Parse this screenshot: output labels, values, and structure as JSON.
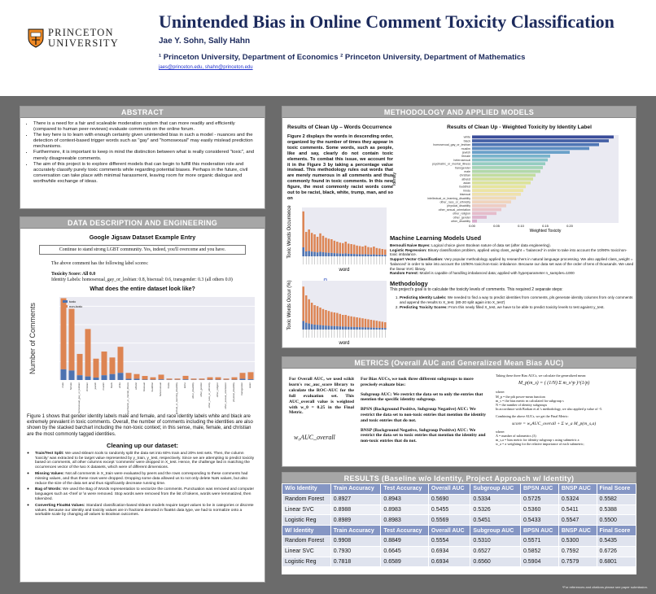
{
  "header": {
    "title": "Unintended Bias in Online Comment Toxicity Classification",
    "authors": "Jae Y. Sohn, Sally Hahn",
    "affiliation": "¹ Princeton University, Department of Economics ² Princeton University, Department of Mathematics",
    "emails": "jaes@princeton.edu, shahn@princeton.edu",
    "logo_line1": "PRINCETON",
    "logo_line2": "UNIVERSITY"
  },
  "abstract": {
    "title": "ABSTRACT",
    "bullets": [
      "There is a need for a fair and scaleable moderation system that can more readily and efficiently (compared to human peer-reviews) evaluate comments on the online forum.",
      "The key here is to learn with enough certainty given unintended bias in such a model - nuances and the detection of context-based trigger words such as \"gay\" and \"homosexual\" may easily mislead prediction mechanisms.",
      "Furthermore, it is important to keep in mind the distinction between what is really considered \"toxic\", and merely disagreeable comments.",
      "The aim of this project is to explore different models that can begin to fulfill this moderation role and accurately classify purely toxic comments while regarding potential biases. Perhaps in the future, civil conversation can take place with minimal harassment, leaving room for more organic dialogue and worthwhile exchange of ideas."
    ]
  },
  "data": {
    "title": "DATA DESCRIPTION AND ENGINEERING",
    "sub1": "Google Jigsaw Dataset Example Entry",
    "example": "Continue to stand strong LGBT community. Yes, indeed, you'll overcome and you have.",
    "scores_intro": "The above comment has the following label scores:",
    "toxicity": "Toxicity Score: All 0.0",
    "identity": "Identity Labels: homosexual_gay_or_lesbian: 0.8, bisexual: 0.6, transgender: 0.3 (all others 0.0)",
    "sub2": "What does the entire dataset look like?",
    "fig1_text": "Figure 1 shows that gender identity labels male and female, and race identity labels white and black are extremely prevalent in toxic comments. Overall, the number of comments including the identities are also shown by the stacked barchart including the non-toxic context; in this sense, male, female, and christian are the most commonly tagged identities.",
    "sub3": "Cleaning up our dataset:",
    "clean": [
      {
        "head": "Train/Test Split:",
        "text": "We used sklearn tools to randomly split the data set into 60% train and 20% test sets. Then, the column 'toxicity' was extracted to be target value represented by y_train, y_test, respectively. Since we are attempting to predict toxicity based on comments, all other columns except 'comments' were dropped in X_test. Hence, the challenge lied in matching the occurrences vector of the two X datasets, which were of different dimensions."
      },
      {
        "head": "Missing Values:",
        "text": "Not all comments in X_train were evaluated by peers and the rows corresponding to these comments had missing values, and thus these rows were dropped. Dropping some data allowed us to not only delete NaN values, but also reduce the size of the data set and thus significantly decrease running time."
      },
      {
        "head": "Bag of Words:",
        "text": "We used the Bag of Words representation to vectorize the comments. Punctuation was removed and computer languages such as <href or \\n were removed. Stop words were removed from the list of tokens, words were lemmatized, then tokenized."
      },
      {
        "head": "Converting Float64 Values:",
        "text": "Standard classification-based sklearn models require target values to be in categories or discrete values. Because our identity and toxicity values are in fractions denoted in float64 data type, we had to normalize onto a workable scale by changing all values to Boolean outcomes."
      }
    ]
  },
  "methods": {
    "title": "METHODOLOGY AND APPLIED MODELS",
    "sub1": "Results of Clean Up – Words Occurrence",
    "fig2_text": "Figure 2 displays the words in descending order, organized by the number of times they appear in toxic comments. Some words, such as people, like and say, clearly do not contain toxic elements. To combat this issue, we account for it in the Figure 3 by taking a percentage value instead. This methodology rules out words that are merely numerous in all comments and thus commonly found in toxic comments. In this new figure, the most commonly racist words come out to be racist, black, white, trump, man, and so on",
    "sub2": "Results of Clean Up - Weighted Toxicity by Identity Label",
    "ml_title": "Machine Learning Models Used",
    "ml": [
      {
        "head": "Bernoulli Naive Bayes:",
        "text": "Logical choice given Boolean nature of data set (after data engineering)."
      },
      {
        "head": "Logistic Regression:",
        "text": "Binary classification problem, applied using class_weight = 'balanced' in order to take into account the 10/90% toxic/non-toxic imbalance."
      },
      {
        "head": "Support Vector Classification:",
        "text": "Very popular methodology applied by researchers in natural language processing. We also applied class_weight = 'balanced' in order to take into account the 10/90% toxic/non-toxic imbalance. Because our data set was of the order of tens of thousands. We used the linear SVC library."
      },
      {
        "head": "Random Forest:",
        "text": "Model is capable of handling imbalanced data; applied with hyperparameter n_samples=1000"
      }
    ],
    "meth_title": "Methodology",
    "meth_intro": "This project's goal is to calculate the toxicity levels of comments. This required 2 separate steps:",
    "steps": [
      {
        "head": "Predicting Identity Labels:",
        "text": "We needed to find a way to predict identities from comments, pls generate identity columns from only comments and append the results to X_test. (80-20 split again into X_test')"
      },
      {
        "head": "Predicting Toxicity Scores:",
        "text": "From this newly filled X_test, we have to be able to predict toxicity levels to test against y_test."
      }
    ]
  },
  "metrics": {
    "title": "METRICS (Overall AUC and Generalized Mean Bias AUC)",
    "col1": "For Overall AUC, we used scikit learn's roc_auc_score library to calculate the ROC-AUC for the full evaluation set. This AUC_overall value is weighted with w_0 = 0.25 in the Final Metric.",
    "formula1": "w₀AUC_overall",
    "col2_intro": "For Bias AUCs, we took three different subgroups to more precisely evaluate bias:",
    "subgroup": "Subgroup AUC: We restrict the data set to only the entries that mention the specific identity subgroup.",
    "bpsn": "BPSN (Background Positive, Subgroup Negative) AUC: We restrict the data set to non-toxic entries that mention the identity and toxic entries that do not.",
    "bnsp": "BNSP (Background Negative, Subgroup Positive) AUC: We restrict the data set to toxic entries that mention the identity and non-toxic entries that do not.",
    "col3_intro": "Taking these three Bias AUCs, we calculate the generalized mean:",
    "formula2": "M_p(m_s) = ( (1/N) Σ m_s^p )^(1/p)",
    "where1": "where:",
    "w1": "M_p = the pth power-mean function",
    "w2": "m_s = the bias metric m calculated for subgroup s",
    "w3": "N = the number of identity subgroups",
    "w4": "In accordance with Borkan et al.'s methodology, we also applied p value of -5.",
    "combine": "Combining the above AUCs, we get the Final Metric:",
    "formula3": "score = w₀AUC_overall + Σ w_a M_p(m_s,a)",
    "where2": "where:",
    "w5": "A = number of submetrics (3)",
    "w6": "m_s,a = bias metric for identity subgroup s using submetric a",
    "w7": "w_a = a weighting for the relative importance of each submetric;"
  },
  "results": {
    "title": "RESULTS (Baseline w/o Identity, Project Approach w/ Identity)",
    "headers1": [
      "W/o Identity",
      "Train Accuracy",
      "Test Accuracy",
      "Overall AUC",
      "Subgroup AUC",
      "BPSN AUC",
      "BNSP AUC",
      "Final Score"
    ],
    "rows1": [
      [
        "Random Forest",
        "0.8927",
        "0.8943",
        "0.5690",
        "0.5334",
        "0.5725",
        "0.5324",
        "0.5582"
      ],
      [
        "Linear SVC",
        "0.8988",
        "0.8983",
        "0.5455",
        "0.5326",
        "0.5360",
        "0.5411",
        "0.5388"
      ],
      [
        "Logistic Reg",
        "0.8989",
        "0.8983",
        "0.5569",
        "0.5451",
        "0.5433",
        "0.5547",
        "0.5500"
      ]
    ],
    "headers2": [
      "W/ Identity",
      "Train Accuracy",
      "Test Accuracy",
      "Overall AUC",
      "Subgroup AUC",
      "BPSN AUC",
      "BNSP AUC",
      "Final Score"
    ],
    "rows2": [
      [
        "Random Forest",
        "0.9908",
        "0.8849",
        "0.5554",
        "0.5310",
        "0.5571",
        "0.5300",
        "0.5435"
      ],
      [
        "Linear SVC",
        "0.7930",
        "0.6645",
        "0.6934",
        "0.6527",
        "0.5852",
        "0.7592",
        "0.6726"
      ],
      [
        "Logistic Reg",
        "0.7818",
        "0.6589",
        "0.6934",
        "0.6560",
        "0.5904",
        "0.7579",
        "0.6801"
      ]
    ]
  },
  "footnote": "*For references and citations please see paper submission.",
  "chart_data": [
    {
      "type": "bar",
      "title": "",
      "ylabel": "Number of Comments",
      "legend": [
        "toxic",
        "non-toxic"
      ],
      "categories": [
        "male",
        "female",
        "homosexual_gay_or_lesbian",
        "christian",
        "jewish",
        "muslim",
        "black",
        "white",
        "psychiatric_or_mental_illness",
        "atheist",
        "bisexual",
        "buddhist",
        "heterosexual",
        "hindu",
        "intellectual_or_learning_disability",
        "latino",
        "other_disability",
        "other_gender",
        "other_race_or_ethnicity",
        "other_religion",
        "other_sexual_orientation",
        "physical_disability",
        "transgender",
        "asian"
      ],
      "series": [
        {
          "name": "toxic",
          "values": [
            9,
            8,
            4,
            3,
            2,
            4,
            5,
            6,
            1,
            1,
            0.4,
            0.3,
            0.5,
            0.2,
            0.2,
            0.5,
            0.2,
            0.2,
            0.3,
            0.3,
            0.2,
            0.3,
            1,
            0.6
          ]
        },
        {
          "name": "non-toxic",
          "values": [
            60,
            52,
            18,
            40,
            16,
            20,
            14,
            22,
            5,
            4,
            3,
            2,
            4,
            1,
            1,
            3,
            1,
            1,
            2,
            2,
            1,
            2,
            5,
            6
          ]
        }
      ]
    },
    {
      "type": "bar",
      "orientation": "horizontal",
      "xlabel": "Weighted Toxicity",
      "ylabel": "Identity",
      "categories": [
        "white",
        "black",
        "homosexual_gay_or_lesbian",
        "muslim",
        "jewish",
        "female",
        "heterosexual",
        "psychiatric_or_mental_illness",
        "transgender",
        "male",
        "christian",
        "atheist",
        "asian",
        "buddhist",
        "hindu",
        "bisexual",
        "intellectual_or_learning_disability",
        "other_race_or_ethnicity",
        "physical_disability",
        "other_sexual_orientation",
        "other_religion",
        "other_gender",
        "other_disability"
      ],
      "values": [
        0.29,
        0.28,
        0.26,
        0.24,
        0.2,
        0.16,
        0.155,
        0.15,
        0.145,
        0.14,
        0.13,
        0.125,
        0.12,
        0.11,
        0.105,
        0.1,
        0.09,
        0.08,
        0.07,
        0.06,
        0.05,
        0.03,
        0.01
      ],
      "xticks": [
        "0.00",
        "0.05",
        "0.10",
        "0.15",
        "0.20"
      ]
    }
  ]
}
